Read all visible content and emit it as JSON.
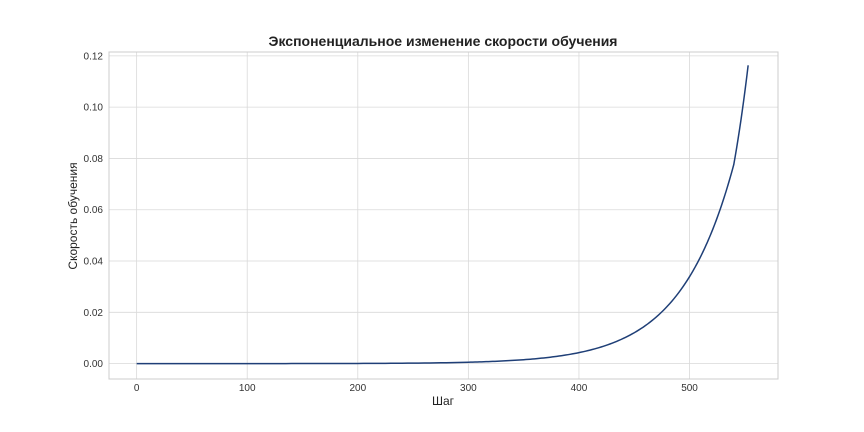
{
  "chart_data": {
    "type": "line",
    "title": "Экспоненциальное изменение скорости обучения",
    "xlabel": "Шаг",
    "ylabel": "Скорость обучения",
    "xlim": [
      -25,
      580
    ],
    "ylim": [
      -0.006,
      0.1215
    ],
    "xticks": [
      0,
      100,
      200,
      300,
      400,
      500
    ],
    "xtick_labels": [
      "0",
      "100",
      "200",
      "300",
      "400",
      "500"
    ],
    "yticks": [
      0.0,
      0.02,
      0.04,
      0.06,
      0.08,
      0.1,
      0.12
    ],
    "ytick_labels": [
      "0.00",
      "0.02",
      "0.04",
      "0.06",
      "0.08",
      "0.10",
      "0.12"
    ],
    "grid": true,
    "series": [
      {
        "color": "#1f3f77",
        "x": [
          0,
          50,
          100,
          150,
          200,
          250,
          300,
          320,
          340,
          360,
          380,
          400,
          420,
          440,
          460,
          480,
          500,
          510,
          520,
          530,
          540,
          553
        ],
        "y": [
          1e-06,
          2.8e-06,
          8.1e-06,
          2.3e-05,
          6.6e-05,
          0.00019,
          0.00054,
          0.00082,
          0.00124,
          0.00187,
          0.00283,
          0.00428,
          0.00648,
          0.0098,
          0.0148,
          0.0224,
          0.0339,
          0.0417,
          0.0513,
          0.0631,
          0.0776,
          0.1163
        ]
      }
    ]
  }
}
